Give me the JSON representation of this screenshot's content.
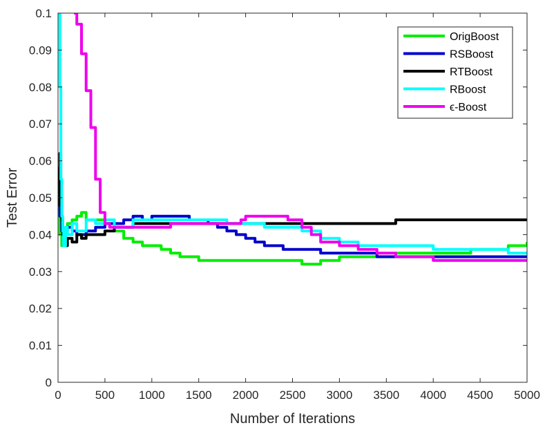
{
  "chart_data": {
    "type": "line",
    "title": "",
    "xlabel": "Number of Iterations",
    "ylabel": "Test Error",
    "xlim": [
      0,
      5000
    ],
    "ylim": [
      0,
      0.1
    ],
    "xticks": [
      0,
      500,
      1000,
      1500,
      2000,
      2500,
      3000,
      3500,
      4000,
      4500,
      5000
    ],
    "yticks": [
      0,
      0.01,
      0.02,
      0.03,
      0.04,
      0.05,
      0.06,
      0.07,
      0.08,
      0.09,
      0.1
    ],
    "xtick_labels": [
      "0",
      "500",
      "1000",
      "1500",
      "2000",
      "2500",
      "3000",
      "3500",
      "4000",
      "4500",
      "5000"
    ],
    "ytick_labels": [
      "0",
      "0.01",
      "0.02",
      "0.03",
      "0.04",
      "0.05",
      "0.06",
      "0.07",
      "0.08",
      "0.09",
      "0.1"
    ],
    "grid": false,
    "legend_position": "top-right",
    "series": [
      {
        "name": "OrigBoost",
        "color": "#00ee00",
        "x": [
          0,
          20,
          40,
          60,
          80,
          100,
          150,
          200,
          250,
          300,
          400,
          500,
          600,
          700,
          800,
          900,
          1000,
          1100,
          1200,
          1300,
          1400,
          1500,
          1600,
          1800,
          2000,
          2200,
          2400,
          2500,
          2600,
          2700,
          2800,
          2900,
          3000,
          3200,
          3400,
          3600,
          3800,
          4000,
          4200,
          4400,
          4600,
          4800,
          5000
        ],
        "y": [
          0.047,
          0.04,
          0.037,
          0.039,
          0.041,
          0.043,
          0.044,
          0.045,
          0.046,
          0.044,
          0.044,
          0.043,
          0.041,
          0.039,
          0.038,
          0.037,
          0.037,
          0.036,
          0.035,
          0.034,
          0.034,
          0.033,
          0.033,
          0.033,
          0.033,
          0.033,
          0.033,
          0.033,
          0.032,
          0.032,
          0.033,
          0.033,
          0.034,
          0.034,
          0.034,
          0.035,
          0.035,
          0.035,
          0.035,
          0.036,
          0.036,
          0.037,
          0.038
        ]
      },
      {
        "name": "RSBoost",
        "color": "#0000cc",
        "x": [
          0,
          20,
          40,
          60,
          80,
          100,
          150,
          200,
          300,
          400,
          500,
          600,
          700,
          800,
          900,
          1000,
          1200,
          1400,
          1600,
          1700,
          1800,
          1900,
          2000,
          2100,
          2200,
          2300,
          2400,
          2500,
          2600,
          2700,
          2800,
          3000,
          3200,
          3400,
          3600,
          3800,
          4000,
          4200,
          4400,
          4600,
          4800,
          5000
        ],
        "y": [
          0.052,
          0.045,
          0.041,
          0.04,
          0.041,
          0.042,
          0.041,
          0.04,
          0.041,
          0.042,
          0.043,
          0.043,
          0.044,
          0.045,
          0.044,
          0.045,
          0.045,
          0.044,
          0.043,
          0.042,
          0.041,
          0.04,
          0.039,
          0.038,
          0.037,
          0.037,
          0.036,
          0.036,
          0.036,
          0.036,
          0.035,
          0.035,
          0.035,
          0.034,
          0.034,
          0.034,
          0.034,
          0.034,
          0.034,
          0.034,
          0.034,
          0.034
        ]
      },
      {
        "name": "RTBoost",
        "color": "#000000",
        "x": [
          0,
          10,
          20,
          30,
          40,
          50,
          60,
          80,
          100,
          150,
          200,
          250,
          300,
          400,
          500,
          600,
          800,
          1000,
          1200,
          1400,
          1600,
          1800,
          2000,
          2200,
          2400,
          2600,
          2800,
          3000,
          3200,
          3400,
          3600,
          3800,
          4000,
          4200,
          4400,
          4600,
          4800,
          5000
        ],
        "y": [
          0.048,
          0.058,
          0.062,
          0.05,
          0.044,
          0.04,
          0.041,
          0.037,
          0.039,
          0.038,
          0.04,
          0.039,
          0.04,
          0.04,
          0.041,
          0.042,
          0.043,
          0.043,
          0.043,
          0.043,
          0.043,
          0.043,
          0.043,
          0.043,
          0.043,
          0.043,
          0.043,
          0.043,
          0.043,
          0.043,
          0.044,
          0.044,
          0.044,
          0.044,
          0.044,
          0.044,
          0.044,
          0.044
        ]
      },
      {
        "name": "RBoost",
        "color": "#00ffff",
        "x": [
          0,
          5,
          10,
          15,
          20,
          30,
          40,
          50,
          60,
          80,
          100,
          150,
          200,
          300,
          400,
          500,
          600,
          800,
          1000,
          1200,
          1400,
          1600,
          1800,
          2000,
          2200,
          2400,
          2600,
          2800,
          3000,
          3200,
          3400,
          3600,
          3800,
          4000,
          4200,
          4400,
          4600,
          4800,
          5000
        ],
        "y": [
          0.1,
          0.1,
          0.1,
          0.1,
          0.08,
          0.055,
          0.045,
          0.041,
          0.037,
          0.042,
          0.04,
          0.043,
          0.041,
          0.044,
          0.043,
          0.044,
          0.042,
          0.044,
          0.044,
          0.044,
          0.044,
          0.044,
          0.043,
          0.043,
          0.042,
          0.042,
          0.041,
          0.039,
          0.038,
          0.037,
          0.037,
          0.037,
          0.037,
          0.036,
          0.036,
          0.036,
          0.036,
          0.035,
          0.035
        ]
      },
      {
        "name": "ϵ-Boost",
        "color": "#ee00ee",
        "x": [
          170,
          200,
          250,
          300,
          350,
          400,
          450,
          500,
          550,
          600,
          700,
          800,
          900,
          1000,
          1200,
          1400,
          1600,
          1800,
          1950,
          2000,
          2200,
          2400,
          2450,
          2600,
          2700,
          2800,
          3000,
          3200,
          3400,
          3600,
          3800,
          4000,
          4200,
          4400,
          4600,
          4800,
          5000
        ],
        "y": [
          0.1,
          0.097,
          0.089,
          0.079,
          0.069,
          0.055,
          0.046,
          0.043,
          0.042,
          0.042,
          0.042,
          0.042,
          0.042,
          0.042,
          0.043,
          0.043,
          0.043,
          0.043,
          0.044,
          0.045,
          0.045,
          0.045,
          0.044,
          0.042,
          0.04,
          0.038,
          0.037,
          0.036,
          0.035,
          0.034,
          0.034,
          0.033,
          0.033,
          0.033,
          0.033,
          0.033,
          0.033
        ]
      }
    ]
  }
}
